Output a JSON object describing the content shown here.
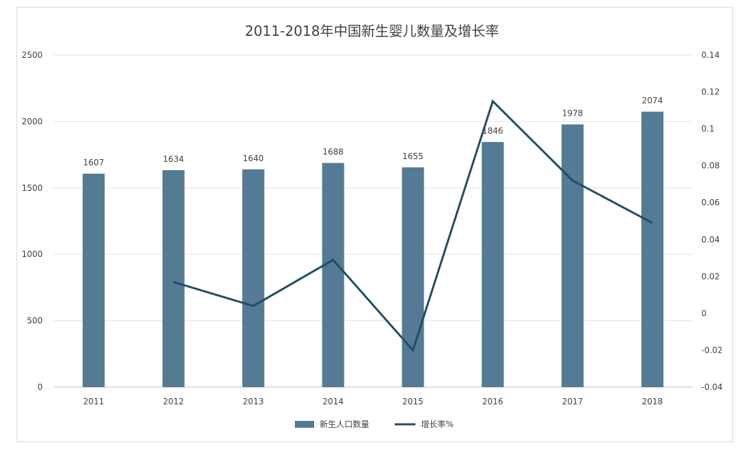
{
  "chart_data": {
    "type": "bar",
    "title": "2011-2018年中国新生婴儿数量及增长率",
    "categories": [
      "2011",
      "2012",
      "2013",
      "2014",
      "2015",
      "2016",
      "2017",
      "2018"
    ],
    "series": [
      {
        "name": "新生人口数量",
        "type": "bar",
        "axis": "left",
        "values": [
          1607,
          1634,
          1640,
          1688,
          1655,
          1846,
          1978,
          2074
        ],
        "color": "#557A93"
      },
      {
        "name": "增长率%",
        "type": "line",
        "axis": "right",
        "values": [
          null,
          0.017,
          0.004,
          0.029,
          -0.02,
          0.115,
          0.072,
          0.049
        ],
        "color": "#1F4E64"
      }
    ],
    "y_left": {
      "min": 0,
      "max": 2500,
      "ticks": [
        0,
        500,
        1000,
        1500,
        2000,
        2500
      ]
    },
    "y_right": {
      "min": -0.04,
      "max": 0.14,
      "ticks": [
        -0.04,
        -0.02,
        0,
        0.02,
        0.04,
        0.06,
        0.08,
        0.1,
        0.12,
        0.14
      ]
    },
    "data_labels": [
      "1607",
      "1634",
      "1640",
      "1688",
      "1655",
      "1846",
      "1978",
      "2074"
    ],
    "grid": true,
    "legend": "bottom-center"
  }
}
